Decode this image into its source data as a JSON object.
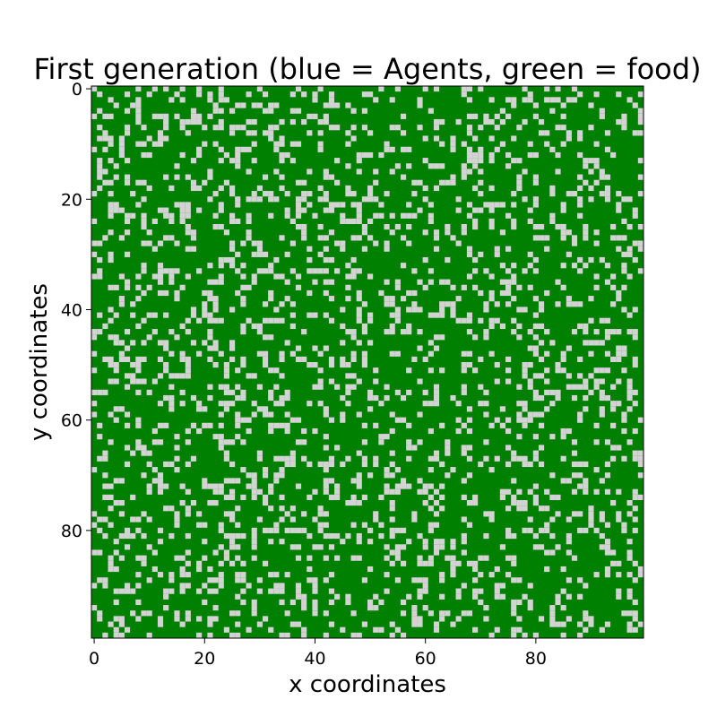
{
  "chart_data": {
    "type": "heatmap",
    "title": "First generation (blue = Agents, green = food)",
    "xlabel": "x coordinates",
    "ylabel": "y coordinates",
    "grid_size": [
      100,
      100
    ],
    "x_range": [
      -0.5,
      99.5
    ],
    "y_range": [
      -0.5,
      99.5
    ],
    "y_inverted": true,
    "x_ticks": [
      0,
      20,
      40,
      60,
      80
    ],
    "y_ticks": [
      0,
      20,
      40,
      60,
      80
    ],
    "grid": false,
    "cell_states": {
      "food": "#008000",
      "empty": "#d3d3d3"
    },
    "empty_fraction": 0.22
  }
}
